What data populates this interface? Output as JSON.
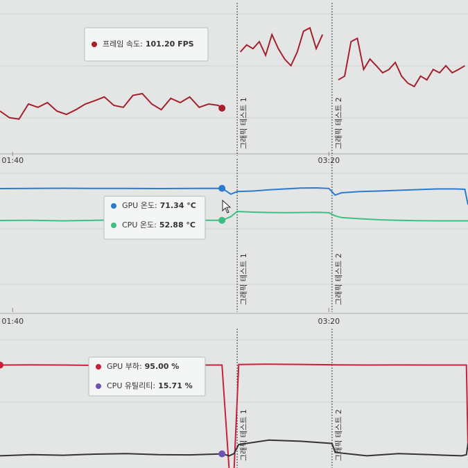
{
  "chart_data": [
    {
      "type": "line",
      "xlim": [
        96,
        244
      ],
      "ylim": [
        0,
        330
      ],
      "xticks": [
        {
          "value": 100,
          "label": "01:40"
        },
        {
          "value": 200,
          "label": "03:20"
        }
      ],
      "annotations": [
        {
          "x": 171,
          "label": "그래픽 테스트 1"
        },
        {
          "x": 201,
          "label": "그래픽 테스트 2"
        }
      ],
      "x": [
        96,
        99,
        102,
        105,
        108,
        111,
        114,
        117,
        120,
        123,
        126,
        129,
        132,
        135,
        138,
        141,
        144,
        147,
        150,
        153,
        156,
        159,
        162,
        165,
        166.2,
        169,
        172,
        174,
        176,
        178,
        180,
        182,
        184,
        186,
        188,
        190,
        192,
        194,
        196,
        198,
        201,
        203,
        205,
        207,
        209,
        211,
        213,
        215,
        217,
        219,
        221,
        223,
        225,
        227,
        229,
        231,
        233,
        235,
        237,
        239,
        241,
        243
      ],
      "series": [
        {
          "name": "프레임 속도:",
          "color": "#a3202c",
          "tooltip_value": 101.2,
          "tooltip_label": "101.20 FPS",
          "values": [
            95,
            81,
            78,
            110,
            103,
            113,
            95,
            88,
            98,
            110,
            117,
            125,
            107,
            103,
            128,
            132,
            110,
            98,
            122,
            113,
            125,
            103,
            110,
            107,
            101.2,
            null,
            220,
            235,
            227,
            242,
            213,
            257,
            227,
            205,
            191,
            220,
            264,
            271,
            227,
            257,
            null,
            161,
            169,
            242,
            249,
            183,
            205,
            191,
            176,
            183,
            198,
            169,
            154,
            147,
            169,
            161,
            183,
            176,
            191,
            176,
            183,
            191
          ]
        }
      ]
    },
    {
      "type": "line",
      "xlim": [
        96,
        244
      ],
      "ylim": [
        0,
        90
      ],
      "xticks": [
        {
          "value": 100,
          "label": "01:40"
        },
        {
          "value": 200,
          "label": "03:20"
        }
      ],
      "annotations": [
        {
          "x": 171,
          "label": "그래픽 테스트 1"
        },
        {
          "x": 201,
          "label": "그래픽 테스트 2"
        }
      ],
      "x": [
        96,
        106,
        116,
        126,
        136,
        146,
        156,
        166.2,
        169,
        171,
        176,
        181,
        186,
        191,
        196,
        200,
        202,
        204,
        210,
        216,
        222,
        228,
        234,
        240,
        243,
        244
      ],
      "series": [
        {
          "name": "GPU 온도:",
          "color": "#2a7ad0",
          "tooltip_value": 71.34,
          "tooltip_label": "71.34 °C",
          "values": [
            71.2,
            71.3,
            71.4,
            71.3,
            71.3,
            71.2,
            71.3,
            71.34,
            68,
            69.5,
            69.8,
            70.5,
            71,
            71.5,
            71.6,
            71.3,
            67.5,
            68.8,
            69.5,
            69.8,
            70.2,
            70.6,
            71,
            71,
            70.8,
            62
          ]
        },
        {
          "name": "CPU 온도:",
          "color": "#3cc080",
          "tooltip_value": 52.88,
          "tooltip_label": "52.88 °C",
          "values": [
            52.8,
            52.9,
            52.6,
            52.9,
            53.2,
            52.7,
            52.9,
            52.88,
            55,
            58,
            57.6,
            57.4,
            57.3,
            57.4,
            57.5,
            57.3,
            55.5,
            54.5,
            53.8,
            53.2,
            52.9,
            52.7,
            52.6,
            52.6,
            52.6,
            52.6
          ]
        }
      ]
    },
    {
      "type": "line",
      "xlim": [
        96,
        244
      ],
      "ylim": [
        0,
        130
      ],
      "annotations": [
        {
          "x": 171,
          "label": "그래픽 테스트 1"
        },
        {
          "x": 201,
          "label": "그래픽 테스트 2"
        }
      ],
      "x": [
        96,
        106,
        116,
        126,
        136,
        146,
        156,
        166.2,
        168.5,
        170,
        171.5,
        181,
        191,
        201,
        202,
        212,
        222,
        232,
        242,
        243.5,
        244
      ],
      "series": [
        {
          "name": "GPU 부하:",
          "color": "#c8203a",
          "tooltip_value": 95,
          "tooltip_label": "95.00 %",
          "values": [
            95,
            95.2,
            95,
            94.8,
            95,
            95.1,
            95,
            95,
            0,
            0,
            95.5,
            95.8,
            95.6,
            95.3,
            95.2,
            95,
            95.1,
            95,
            95,
            95,
            20
          ]
        },
        {
          "name": "CPU 유틸리티:",
          "color": "#333333",
          "dot_color": "#7050b0",
          "tooltip_value": 15.71,
          "tooltip_label": "15.71 %",
          "values": [
            14,
            15,
            14.5,
            15.5,
            16,
            15,
            14.8,
            15.71,
            14,
            16,
            24,
            28,
            27,
            25,
            17,
            14,
            16,
            15,
            14,
            15,
            25
          ]
        }
      ]
    }
  ]
}
